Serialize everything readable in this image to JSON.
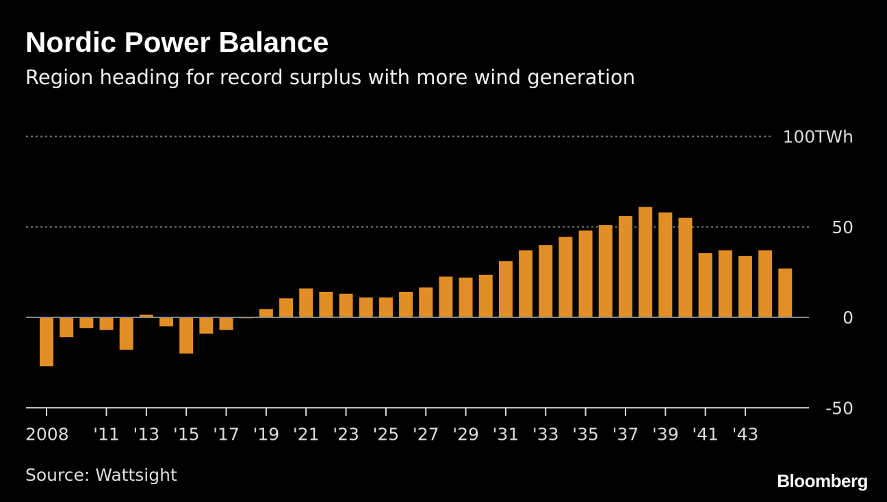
{
  "chart_data": {
    "type": "bar",
    "title": "Nordic Power Balance",
    "subtitle": "Region heading for record surplus with more wind generation",
    "source": "Source: Wattsight",
    "brand": "Bloomberg",
    "ylabel": "TWh",
    "ylim": [
      -50,
      100
    ],
    "yticks": [
      {
        "value": 100,
        "label": "100TWh"
      },
      {
        "value": 50,
        "label": "50"
      },
      {
        "value": 0,
        "label": "0"
      },
      {
        "value": -50,
        "label": "-50"
      }
    ],
    "grid": true,
    "bar_color": "#e08e25",
    "categories": [
      2008,
      2009,
      2010,
      2011,
      2012,
      2013,
      2014,
      2015,
      2016,
      2017,
      2018,
      2019,
      2020,
      2021,
      2022,
      2023,
      2024,
      2025,
      2026,
      2027,
      2028,
      2029,
      2030,
      2031,
      2032,
      2033,
      2034,
      2035,
      2036,
      2037,
      2038,
      2039,
      2040,
      2041,
      2042,
      2043,
      2044,
      2045
    ],
    "values": [
      -27,
      -11,
      -6,
      -7,
      -18,
      1.5,
      -5,
      -20,
      -9,
      -7,
      -0.5,
      4.5,
      10.5,
      16,
      14,
      13,
      11,
      11,
      14,
      16.5,
      22.5,
      22,
      23.5,
      31,
      37,
      40,
      44.5,
      48,
      51,
      56,
      61,
      58,
      55,
      35.5,
      37,
      34,
      37,
      27
    ],
    "xticks": [
      {
        "year": 2008,
        "label": "2008"
      },
      {
        "year": 2011,
        "label": "'11"
      },
      {
        "year": 2013,
        "label": "'13"
      },
      {
        "year": 2015,
        "label": "'15"
      },
      {
        "year": 2017,
        "label": "'17"
      },
      {
        "year": 2019,
        "label": "'19"
      },
      {
        "year": 2021,
        "label": "'21"
      },
      {
        "year": 2023,
        "label": "'23"
      },
      {
        "year": 2025,
        "label": "'25"
      },
      {
        "year": 2027,
        "label": "'27"
      },
      {
        "year": 2029,
        "label": "'29"
      },
      {
        "year": 2031,
        "label": "'31"
      },
      {
        "year": 2033,
        "label": "'33"
      },
      {
        "year": 2035,
        "label": "'35"
      },
      {
        "year": 2037,
        "label": "'37"
      },
      {
        "year": 2039,
        "label": "'39"
      },
      {
        "year": 2041,
        "label": "'41"
      },
      {
        "year": 2043,
        "label": "'43"
      }
    ]
  }
}
